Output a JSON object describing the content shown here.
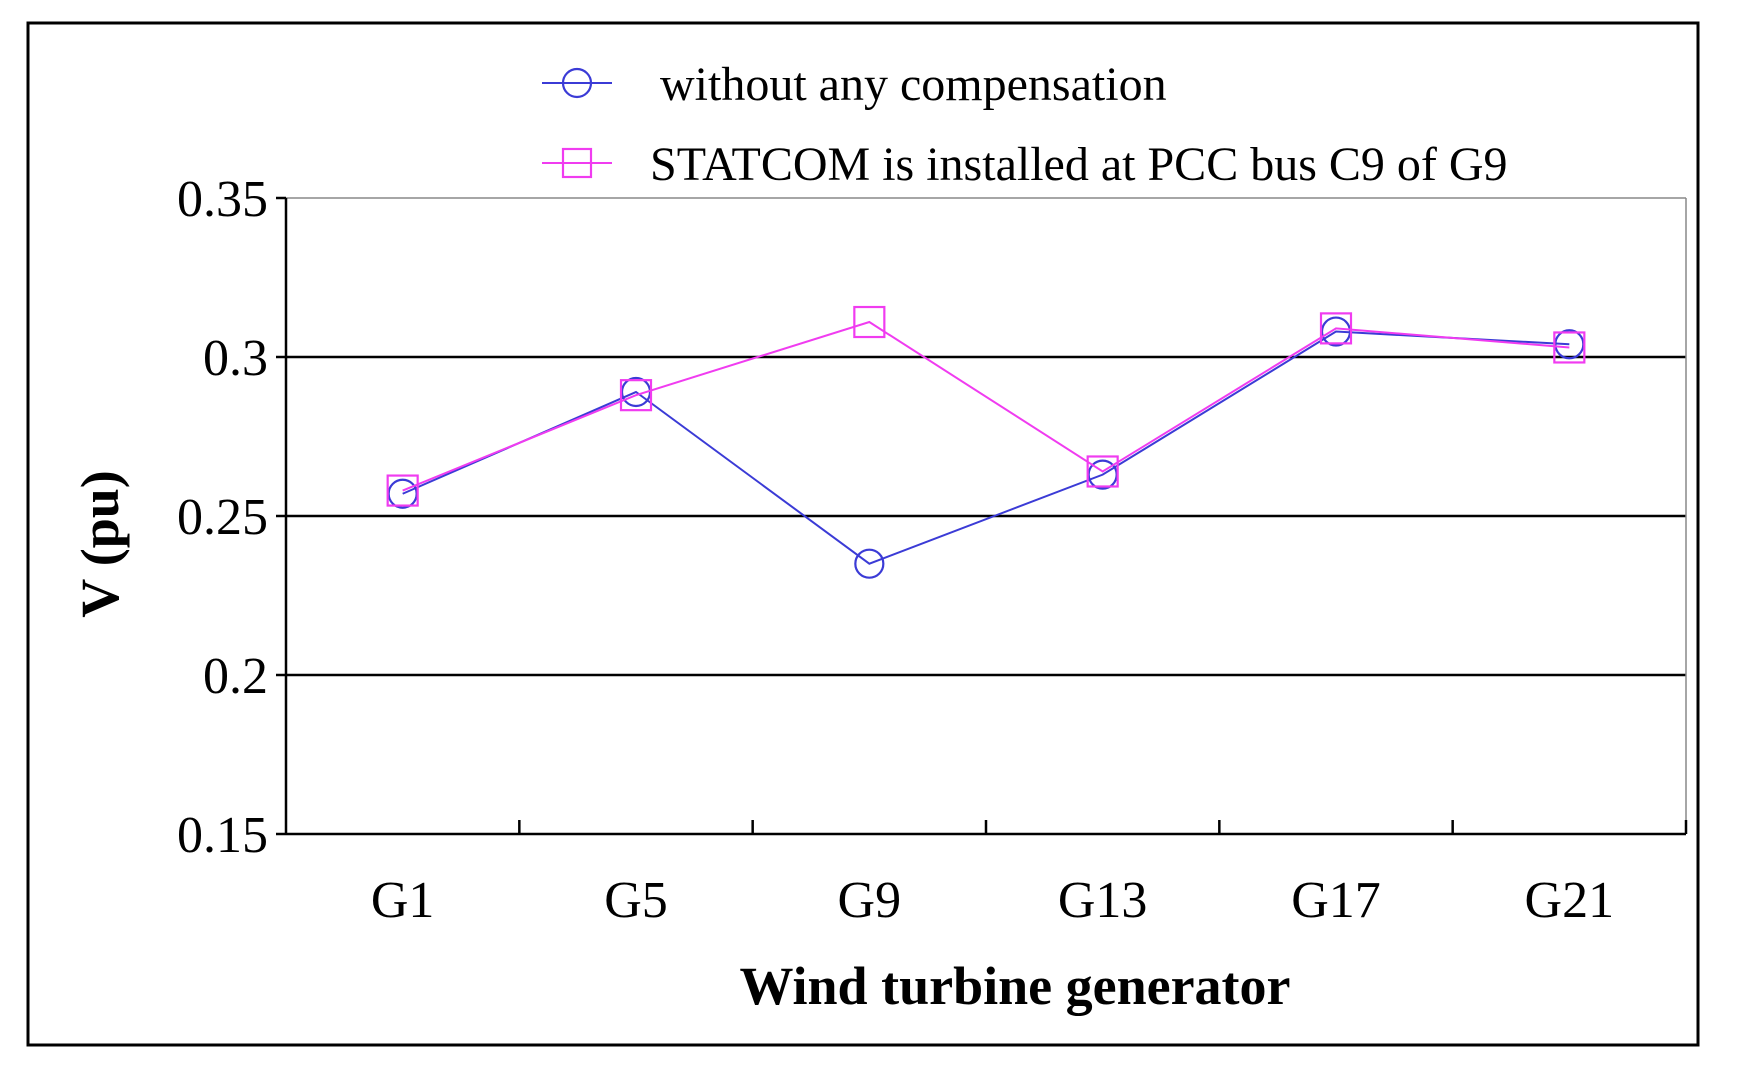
{
  "chart_data": {
    "type": "line",
    "title": "",
    "xlabel": "Wind turbine generator",
    "ylabel": "V (pu)",
    "categories": [
      "G1",
      "G5",
      "G9",
      "G13",
      "G17",
      "G21"
    ],
    "ylim": [
      0.15,
      0.35
    ],
    "yticks": [
      0.15,
      0.2,
      0.25,
      0.3,
      0.35
    ],
    "ytick_labels": [
      "0.15",
      "0.2",
      "0.25",
      "0.3",
      "0.35"
    ],
    "grid": "horizontal",
    "legend_position": "top",
    "series": [
      {
        "name": "without any compensation",
        "color": "#3b3bd6",
        "marker": "circle",
        "values": [
          0.257,
          0.289,
          0.235,
          0.263,
          0.308,
          0.304
        ]
      },
      {
        "name": "STATCOM is installed at PCC bus C9 of G9",
        "color": "#f03cf0",
        "marker": "square",
        "values": [
          0.258,
          0.288,
          0.311,
          0.264,
          0.309,
          0.303
        ]
      }
    ]
  }
}
